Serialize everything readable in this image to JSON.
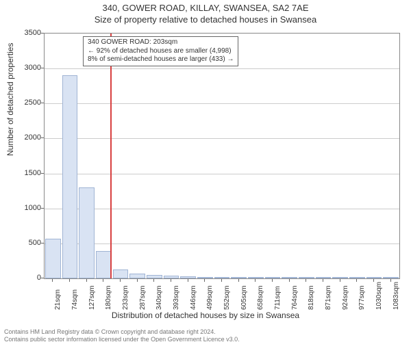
{
  "title_line1": "340, GOWER ROAD, KILLAY, SWANSEA, SA2 7AE",
  "title_line2": "Size of property relative to detached houses in Swansea",
  "y_axis_label": "Number of detached properties",
  "x_axis_label": "Distribution of detached houses by size in Swansea",
  "attribution_line1": "Contains HM Land Registry data © Crown copyright and database right 2024.",
  "attribution_line2": "Contains public sector information licensed under the Open Government Licence v3.0.",
  "info_box": {
    "line1": "340 GOWER ROAD: 203sqm",
    "line2": "← 92% of detached houses are smaller (4,998)",
    "line3": "8% of semi-detached houses are larger (433) →"
  },
  "chart": {
    "type": "histogram",
    "background_color": "#ffffff",
    "grid_color": "#cccccc",
    "axis_color": "#888888",
    "bar_fill": "#d9e3f3",
    "bar_stroke": "#a0b4d4",
    "marker_color": "#d84040",
    "ylim": [
      0,
      3500
    ],
    "yticks": [
      0,
      500,
      1000,
      1500,
      2000,
      2500,
      3000,
      3500
    ],
    "x_labels": [
      "21sqm",
      "74sqm",
      "127sqm",
      "180sqm",
      "233sqm",
      "287sqm",
      "340sqm",
      "393sqm",
      "446sqm",
      "499sqm",
      "552sqm",
      "605sqm",
      "658sqm",
      "711sqm",
      "764sqm",
      "818sqm",
      "871sqm",
      "924sqm",
      "977sqm",
      "1030sqm",
      "1083sqm"
    ],
    "bar_values": [
      570,
      2900,
      1300,
      390,
      130,
      70,
      50,
      35,
      25,
      18,
      12,
      9,
      7,
      5,
      4,
      3,
      2,
      1,
      1,
      1,
      1
    ],
    "marker_index": 3.43,
    "title_fontsize": 13,
    "label_fontsize": 12,
    "tick_fontsize": 11
  }
}
